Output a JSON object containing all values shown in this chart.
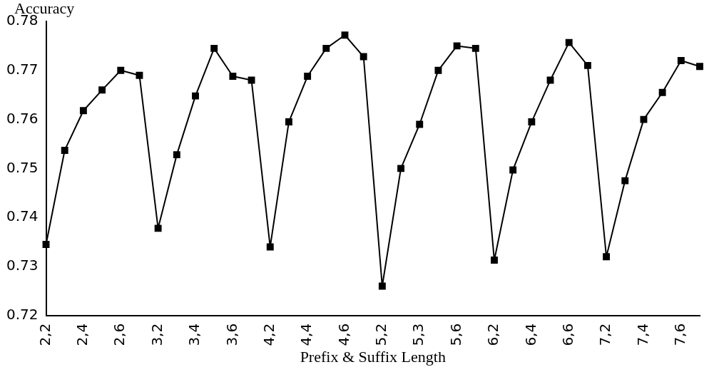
{
  "chart_data": {
    "type": "line",
    "ylabel": "Accuracy",
    "xlabel": "Prefix & Suffix Length",
    "categories": [
      "2,2",
      null,
      "2,4",
      null,
      "2,6",
      null,
      "3,2",
      null,
      "3,4",
      null,
      "3,6",
      null,
      "4,2",
      null,
      "4,4",
      null,
      "4,6",
      null,
      "5,2",
      null,
      "5,3",
      null,
      "5,6",
      null,
      "6,2",
      null,
      "6,4",
      null,
      "6,6",
      null,
      "7,2",
      null,
      "7,4",
      null,
      "7,6",
      null
    ],
    "series": [
      {
        "color": "#000000",
        "values": [
          0.7345,
          0.7537,
          0.7618,
          0.766,
          0.77,
          0.769,
          0.7378,
          0.7528,
          0.7648,
          0.7745,
          0.7688,
          0.768,
          0.734,
          0.7595,
          0.7688,
          0.7745,
          0.7772,
          0.7728,
          0.726,
          0.75,
          0.759,
          0.77,
          0.775,
          0.7745,
          0.7313,
          0.7497,
          0.7595,
          0.768,
          0.7757,
          0.771,
          0.732,
          0.7475,
          0.76,
          0.7655,
          0.772,
          0.7708
        ]
      }
    ],
    "ylim": [
      0.72,
      0.78
    ],
    "yticks": [
      0.72,
      0.73,
      0.74,
      0.75,
      0.76,
      0.77,
      0.78
    ],
    "grid": false,
    "legend": false,
    "marker": "square",
    "line_style": "solid"
  }
}
